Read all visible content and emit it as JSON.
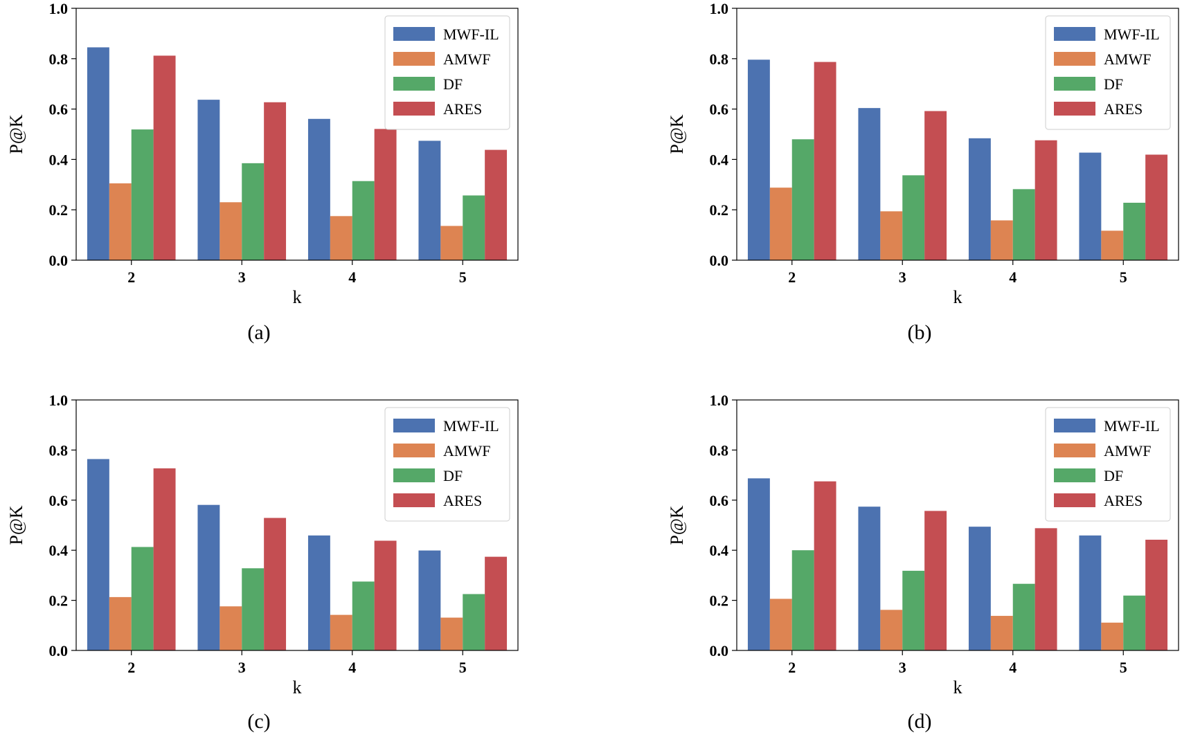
{
  "colors": {
    "MWF-IL": "#4c72b0",
    "AMWF": "#dd8452",
    "DF": "#55a868",
    "ARES": "#c44e52"
  },
  "chart_data": [
    {
      "type": "bar",
      "caption": "(a)",
      "xlabel": "k",
      "ylabel": "P@K",
      "ylim": [
        0,
        1.0
      ],
      "yticks": [
        "0.0",
        "0.2",
        "0.4",
        "0.6",
        "0.8",
        "1.0"
      ],
      "legend_position": "top-right",
      "categories": [
        "2",
        "3",
        "4",
        "5"
      ],
      "series": [
        {
          "name": "MWF-IL",
          "values": [
            0.845,
            0.637,
            0.561,
            0.474
          ]
        },
        {
          "name": "AMWF",
          "values": [
            0.305,
            0.23,
            0.175,
            0.136
          ]
        },
        {
          "name": "DF",
          "values": [
            0.519,
            0.385,
            0.314,
            0.257
          ]
        },
        {
          "name": "ARES",
          "values": [
            0.812,
            0.627,
            0.521,
            0.438
          ]
        }
      ]
    },
    {
      "type": "bar",
      "caption": "(b)",
      "xlabel": "k",
      "ylabel": "P@K",
      "ylim": [
        0,
        1.0
      ],
      "yticks": [
        "0.0",
        "0.2",
        "0.4",
        "0.6",
        "0.8",
        "1.0"
      ],
      "legend_position": "top-right",
      "categories": [
        "2",
        "3",
        "4",
        "5"
      ],
      "series": [
        {
          "name": "MWF-IL",
          "values": [
            0.796,
            0.604,
            0.484,
            0.427
          ]
        },
        {
          "name": "AMWF",
          "values": [
            0.288,
            0.194,
            0.158,
            0.117
          ]
        },
        {
          "name": "DF",
          "values": [
            0.48,
            0.337,
            0.282,
            0.228
          ]
        },
        {
          "name": "ARES",
          "values": [
            0.787,
            0.592,
            0.476,
            0.419
          ]
        }
      ]
    },
    {
      "type": "bar",
      "caption": "(c)",
      "xlabel": "k",
      "ylabel": "P@K",
      "ylim": [
        0,
        1.0
      ],
      "yticks": [
        "0.0",
        "0.2",
        "0.4",
        "0.6",
        "0.8",
        "1.0"
      ],
      "legend_position": "top-right",
      "categories": [
        "2",
        "3",
        "4",
        "5"
      ],
      "series": [
        {
          "name": "MWF-IL",
          "values": [
            0.764,
            0.581,
            0.459,
            0.399
          ]
        },
        {
          "name": "AMWF",
          "values": [
            0.213,
            0.176,
            0.142,
            0.131
          ]
        },
        {
          "name": "DF",
          "values": [
            0.413,
            0.328,
            0.275,
            0.225
          ]
        },
        {
          "name": "ARES",
          "values": [
            0.727,
            0.529,
            0.438,
            0.374
          ]
        }
      ]
    },
    {
      "type": "bar",
      "caption": "(d)",
      "xlabel": "k",
      "ylabel": "P@K",
      "ylim": [
        0,
        1.0
      ],
      "yticks": [
        "0.0",
        "0.2",
        "0.4",
        "0.6",
        "0.8",
        "1.0"
      ],
      "legend_position": "top-right",
      "categories": [
        "2",
        "3",
        "4",
        "5"
      ],
      "series": [
        {
          "name": "MWF-IL",
          "values": [
            0.687,
            0.574,
            0.494,
            0.459
          ]
        },
        {
          "name": "AMWF",
          "values": [
            0.206,
            0.162,
            0.138,
            0.111
          ]
        },
        {
          "name": "DF",
          "values": [
            0.4,
            0.318,
            0.266,
            0.219
          ]
        },
        {
          "name": "ARES",
          "values": [
            0.675,
            0.557,
            0.488,
            0.442
          ]
        }
      ]
    }
  ]
}
